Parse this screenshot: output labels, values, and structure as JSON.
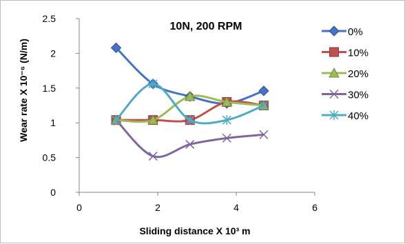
{
  "chart_data": {
    "type": "line",
    "title": "10N, 200 RPM",
    "xlabel": "Sliding distance X 10³ m",
    "ylabel": "Wear rate X 10⁻⁶ (N/m)",
    "xlim": [
      0,
      6
    ],
    "ylim": [
      0,
      2.5
    ],
    "x_ticks": [
      "0",
      "2",
      "4",
      "6"
    ],
    "y_ticks": [
      "0",
      "0.5",
      "1",
      "1.5",
      "2",
      "2.5"
    ],
    "x": [
      0.94,
      1.88,
      2.82,
      3.76,
      4.7
    ],
    "grid": false,
    "legend_position": "right",
    "smooth": true,
    "series": [
      {
        "name": "0%",
        "values": [
          2.08,
          1.56,
          1.38,
          1.28,
          1.46
        ],
        "color": "#4472c4",
        "marker": "diamond"
      },
      {
        "name": "10%",
        "values": [
          1.04,
          1.04,
          1.04,
          1.3,
          1.25
        ],
        "color": "#c0504d",
        "marker": "square"
      },
      {
        "name": "20%",
        "values": [
          1.04,
          1.04,
          1.38,
          1.3,
          1.25
        ],
        "color": "#9bbb59",
        "marker": "triangle"
      },
      {
        "name": "30%",
        "values": [
          1.04,
          0.52,
          0.69,
          0.78,
          0.83
        ],
        "color": "#8064a2",
        "marker": "x"
      },
      {
        "name": "40%",
        "values": [
          1.04,
          1.56,
          1.04,
          1.04,
          1.25
        ],
        "color": "#4bacc6",
        "marker": "star"
      }
    ]
  }
}
